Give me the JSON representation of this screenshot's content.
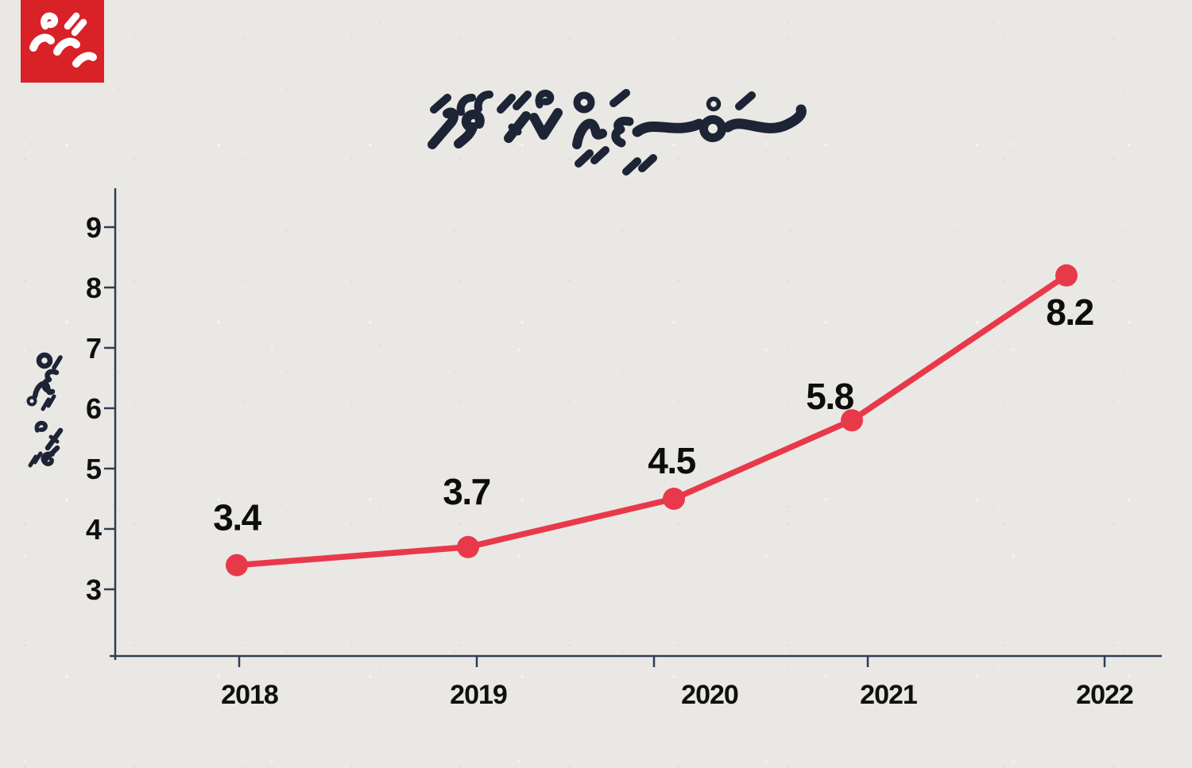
{
  "brand": {
    "logo_text": "މިހާރު",
    "logo_bg": "#d92128",
    "logo_fg": "#ffffff"
  },
  "chart_data": {
    "type": "line",
    "title": "ސަބްސިޑީއަށް ކުރާ ހޭދަ",
    "categories": [
      "2018",
      "2019",
      "2020",
      "2021",
      "2022"
    ],
    "values": [
      3.4,
      3.7,
      4.5,
      5.8,
      8.2
    ],
    "point_labels": [
      "3.4",
      "3.7",
      "4.5",
      "5.8",
      "8.2"
    ],
    "ylabel": "ބިލިއަން ރުފިޔާ",
    "yticks": [
      3,
      4,
      5,
      6,
      7,
      8,
      9
    ],
    "ylim": [
      2.8,
      9.6
    ],
    "grid": false,
    "legend_position": "none",
    "line_color": "#e8394b",
    "point_color": "#e8394b",
    "axis_color": "#2f3d55",
    "label_color": "#0d0d0d",
    "title_color": "#1c2436"
  }
}
